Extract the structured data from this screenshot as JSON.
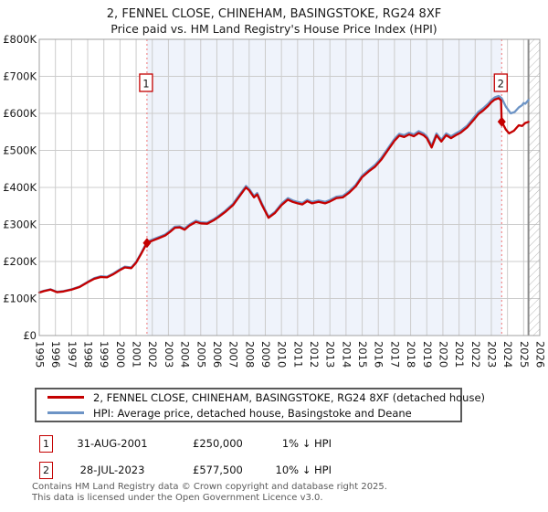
{
  "title": {
    "line1": "2, FENNEL CLOSE, CHINEHAM, BASINGSTOKE, RG24 8XF",
    "line2": "Price paid vs. HM Land Registry's House Price Index (HPI)"
  },
  "colors": {
    "price_line": "#c40000",
    "hpi_line": "#6d94c6",
    "band": "#eff3fb",
    "grid": "#cccccc",
    "border": "#a0a0a0",
    "dashed_marker": "#f07575",
    "hatch": "#b5b5b5",
    "today_line": "#8c8c8c",
    "marker_box_border": "#c40000",
    "tick_text": "#1a1a1a",
    "footer_text": "#5a5a5a"
  },
  "chart_data": {
    "type": "line",
    "title": "2, FENNEL CLOSE, CHINEHAM, BASINGSTOKE, RG24 8XF — Price paid vs. HM Land Registry's House Price Index (HPI)",
    "xlabel": "",
    "ylabel": "",
    "x_axis": {
      "min": 1995,
      "max": 2026,
      "ticks": [
        1995,
        1996,
        1997,
        1998,
        1999,
        2000,
        2001,
        2002,
        2003,
        2004,
        2005,
        2006,
        2007,
        2008,
        2009,
        2010,
        2011,
        2012,
        2013,
        2014,
        2015,
        2016,
        2017,
        2018,
        2019,
        2020,
        2021,
        2022,
        2023,
        2024,
        2025,
        2026
      ]
    },
    "y_axis": {
      "min": 0,
      "max": 800000,
      "grid": true,
      "ticks": [
        {
          "value": 0,
          "label": "£0"
        },
        {
          "value": 100000,
          "label": "£100K"
        },
        {
          "value": 200000,
          "label": "£200K"
        },
        {
          "value": 300000,
          "label": "£300K"
        },
        {
          "value": 400000,
          "label": "£400K"
        },
        {
          "value": 500000,
          "label": "£500K"
        },
        {
          "value": 600000,
          "label": "£600K"
        },
        {
          "value": 700000,
          "label": "£700K"
        },
        {
          "value": 800000,
          "label": "£800K"
        }
      ]
    },
    "shaded_region": {
      "from": 2001.67,
      "to": 2023.64
    },
    "hatched_region": {
      "from": 2025.3,
      "to": 2026
    },
    "markers": [
      {
        "label": "1",
        "year": 2001.67,
        "value": 250000
      },
      {
        "label": "2",
        "year": 2023.64,
        "value": 577500
      }
    ],
    "legend_position": "bottom",
    "series": [
      {
        "name": "HPI: Average price, detached house, Basingstoke and Deane",
        "color_key": "hpi_line",
        "points": [
          [
            1995.0,
            117000
          ],
          [
            1995.3,
            121000
          ],
          [
            1995.7,
            125000
          ],
          [
            1996.1,
            118000
          ],
          [
            1996.5,
            120000
          ],
          [
            1997.0,
            125000
          ],
          [
            1997.5,
            132000
          ],
          [
            1998.0,
            145000
          ],
          [
            1998.4,
            155000
          ],
          [
            1998.8,
            160000
          ],
          [
            1999.2,
            159000
          ],
          [
            1999.6,
            168000
          ],
          [
            2000.0,
            179000
          ],
          [
            2000.3,
            186000
          ],
          [
            2000.7,
            184000
          ],
          [
            2001.0,
            199000
          ],
          [
            2001.3,
            222000
          ],
          [
            2001.67,
            253000
          ],
          [
            2002.0,
            259000
          ],
          [
            2002.4,
            266000
          ],
          [
            2002.8,
            273000
          ],
          [
            2003.1,
            283000
          ],
          [
            2003.4,
            294000
          ],
          [
            2003.7,
            295000
          ],
          [
            2004.0,
            289000
          ],
          [
            2004.3,
            300000
          ],
          [
            2004.7,
            310000
          ],
          [
            2005.0,
            306000
          ],
          [
            2005.4,
            305000
          ],
          [
            2005.8,
            314000
          ],
          [
            2006.1,
            323000
          ],
          [
            2006.5,
            336000
          ],
          [
            2007.0,
            356000
          ],
          [
            2007.4,
            380000
          ],
          [
            2007.8,
            404000
          ],
          [
            2008.0,
            396000
          ],
          [
            2008.3,
            377000
          ],
          [
            2008.5,
            385000
          ],
          [
            2008.8,
            356000
          ],
          [
            2009.2,
            321000
          ],
          [
            2009.6,
            334000
          ],
          [
            2010.0,
            356000
          ],
          [
            2010.4,
            371000
          ],
          [
            2010.7,
            365000
          ],
          [
            2011.0,
            361000
          ],
          [
            2011.3,
            358000
          ],
          [
            2011.6,
            367000
          ],
          [
            2011.9,
            361000
          ],
          [
            2012.3,
            365000
          ],
          [
            2012.7,
            361000
          ],
          [
            2013.0,
            366000
          ],
          [
            2013.4,
            375000
          ],
          [
            2013.8,
            377000
          ],
          [
            2014.2,
            390000
          ],
          [
            2014.6,
            407000
          ],
          [
            2015.0,
            432000
          ],
          [
            2015.4,
            447000
          ],
          [
            2015.8,
            461000
          ],
          [
            2016.2,
            481000
          ],
          [
            2016.6,
            506000
          ],
          [
            2017.0,
            531000
          ],
          [
            2017.3,
            545000
          ],
          [
            2017.6,
            541000
          ],
          [
            2017.9,
            548000
          ],
          [
            2018.2,
            543000
          ],
          [
            2018.5,
            552000
          ],
          [
            2018.8,
            546000
          ],
          [
            2019.0,
            538000
          ],
          [
            2019.3,
            513000
          ],
          [
            2019.6,
            546000
          ],
          [
            2019.9,
            529000
          ],
          [
            2020.2,
            546000
          ],
          [
            2020.5,
            538000
          ],
          [
            2020.8,
            546000
          ],
          [
            2021.1,
            553000
          ],
          [
            2021.5,
            567000
          ],
          [
            2021.9,
            588000
          ],
          [
            2022.2,
            604000
          ],
          [
            2022.5,
            614000
          ],
          [
            2022.8,
            626000
          ],
          [
            2023.0,
            636000
          ],
          [
            2023.2,
            643000
          ],
          [
            2023.45,
            647000
          ],
          [
            2023.64,
            641000
          ],
          [
            2023.9,
            618000
          ],
          [
            2024.2,
            600000
          ],
          [
            2024.45,
            604000
          ],
          [
            2024.7,
            616000
          ],
          [
            2024.9,
            622000
          ],
          [
            2025.0,
            628000
          ],
          [
            2025.1,
            626000
          ],
          [
            2025.3,
            636000
          ]
        ]
      },
      {
        "name": "2, FENNEL CLOSE, CHINEHAM, BASINGSTOKE, RG24 8XF (detached house)",
        "color_key": "price_line",
        "points": [
          [
            1995.0,
            116000
          ],
          [
            1995.3,
            120000
          ],
          [
            1995.7,
            124000
          ],
          [
            1996.1,
            117000
          ],
          [
            1996.5,
            119000
          ],
          [
            1997.0,
            124000
          ],
          [
            1997.5,
            131000
          ],
          [
            1998.0,
            144000
          ],
          [
            1998.4,
            153000
          ],
          [
            1998.8,
            158000
          ],
          [
            1999.2,
            157000
          ],
          [
            1999.6,
            166000
          ],
          [
            2000.0,
            177000
          ],
          [
            2000.3,
            184000
          ],
          [
            2000.7,
            182000
          ],
          [
            2001.0,
            197000
          ],
          [
            2001.3,
            220000
          ],
          [
            2001.67,
            250000
          ],
          [
            2002.0,
            256000
          ],
          [
            2002.4,
            263000
          ],
          [
            2002.8,
            270000
          ],
          [
            2003.1,
            280000
          ],
          [
            2003.4,
            291000
          ],
          [
            2003.7,
            292000
          ],
          [
            2004.0,
            286000
          ],
          [
            2004.3,
            297000
          ],
          [
            2004.7,
            307000
          ],
          [
            2005.0,
            303000
          ],
          [
            2005.4,
            302000
          ],
          [
            2005.8,
            311000
          ],
          [
            2006.1,
            320000
          ],
          [
            2006.5,
            333000
          ],
          [
            2007.0,
            352000
          ],
          [
            2007.4,
            376000
          ],
          [
            2007.8,
            400000
          ],
          [
            2008.0,
            392000
          ],
          [
            2008.3,
            373000
          ],
          [
            2008.5,
            381000
          ],
          [
            2008.8,
            352000
          ],
          [
            2009.2,
            318000
          ],
          [
            2009.6,
            331000
          ],
          [
            2010.0,
            352000
          ],
          [
            2010.4,
            367000
          ],
          [
            2010.7,
            361000
          ],
          [
            2011.0,
            357000
          ],
          [
            2011.3,
            354000
          ],
          [
            2011.6,
            363000
          ],
          [
            2011.9,
            357000
          ],
          [
            2012.3,
            361000
          ],
          [
            2012.7,
            357000
          ],
          [
            2013.0,
            362000
          ],
          [
            2013.4,
            371000
          ],
          [
            2013.8,
            373000
          ],
          [
            2014.2,
            386000
          ],
          [
            2014.6,
            403000
          ],
          [
            2015.0,
            428000
          ],
          [
            2015.4,
            443000
          ],
          [
            2015.8,
            456000
          ],
          [
            2016.2,
            476000
          ],
          [
            2016.6,
            501000
          ],
          [
            2017.0,
            526000
          ],
          [
            2017.3,
            540000
          ],
          [
            2017.6,
            536000
          ],
          [
            2017.9,
            543000
          ],
          [
            2018.2,
            538000
          ],
          [
            2018.5,
            547000
          ],
          [
            2018.8,
            541000
          ],
          [
            2019.0,
            533000
          ],
          [
            2019.3,
            508000
          ],
          [
            2019.6,
            541000
          ],
          [
            2019.9,
            524000
          ],
          [
            2020.2,
            541000
          ],
          [
            2020.5,
            533000
          ],
          [
            2020.8,
            541000
          ],
          [
            2021.1,
            548000
          ],
          [
            2021.5,
            562000
          ],
          [
            2021.9,
            582000
          ],
          [
            2022.2,
            598000
          ],
          [
            2022.5,
            608000
          ],
          [
            2022.8,
            620000
          ],
          [
            2023.0,
            630000
          ],
          [
            2023.2,
            637000
          ],
          [
            2023.45,
            641000
          ],
          [
            2023.6,
            635000
          ],
          [
            2023.64,
            577500
          ],
          [
            2023.9,
            556000
          ],
          [
            2024.1,
            546000
          ],
          [
            2024.4,
            553000
          ],
          [
            2024.7,
            568000
          ],
          [
            2024.9,
            566000
          ],
          [
            2025.1,
            574000
          ],
          [
            2025.3,
            577000
          ]
        ]
      }
    ]
  },
  "legend": {
    "items": [
      {
        "label": "2, FENNEL CLOSE, CHINEHAM, BASINGSTOKE, RG24 8XF (detached house)",
        "color_key": "price_line"
      },
      {
        "label": "HPI: Average price, detached house, Basingstoke and Deane",
        "color_key": "hpi_line"
      }
    ]
  },
  "annotations": {
    "rows": [
      {
        "marker": "1",
        "date": "31-AUG-2001",
        "price": "£250,000",
        "hpi_note": "1% ↓ HPI"
      },
      {
        "marker": "2",
        "date": "28-JUL-2023",
        "price": "£577,500",
        "hpi_note": "10% ↓ HPI"
      }
    ]
  },
  "footer": {
    "line1": "Contains HM Land Registry data © Crown copyright and database right 2025.",
    "line2": "This data is licensed under the Open Government Licence v3.0."
  }
}
